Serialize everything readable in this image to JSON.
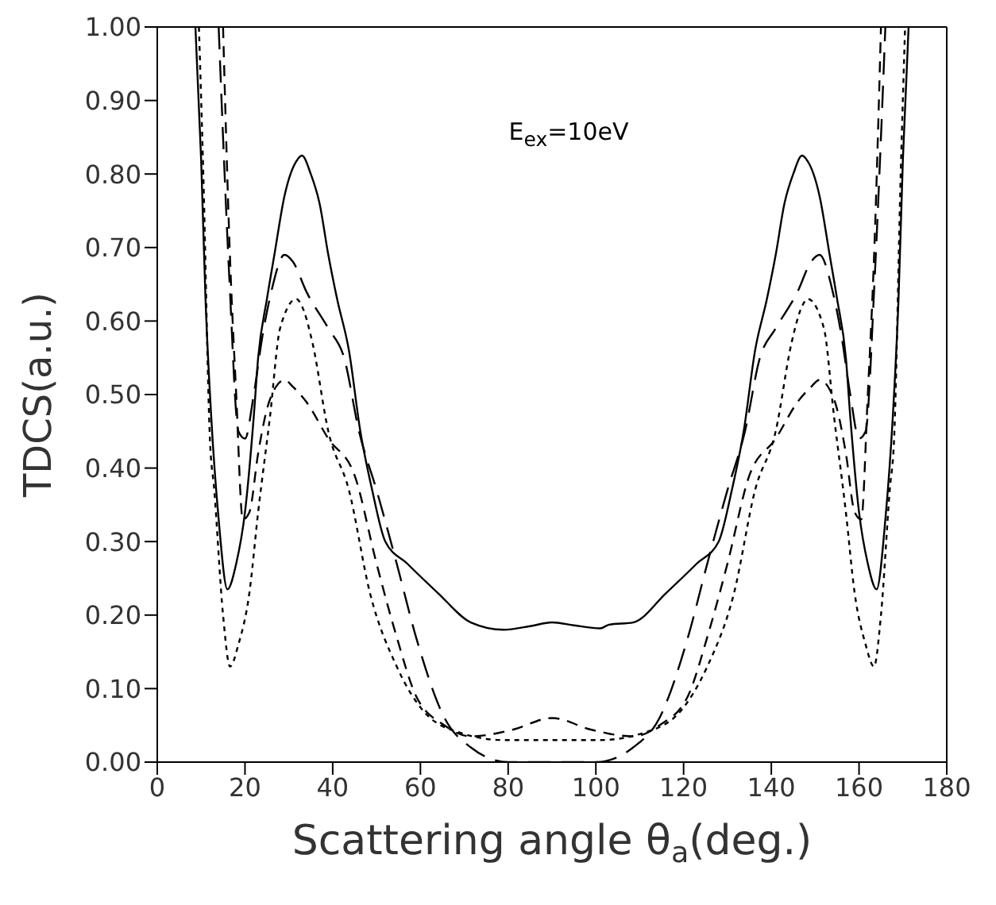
{
  "chart_data": {
    "type": "line",
    "xlabel": "Scattering angle θ$_{a}$(deg.)",
    "ylabel": "TDCS(a.u.)",
    "annotations": [
      "E$_{ex}$=10eV"
    ],
    "xlim": [
      0,
      180
    ],
    "xticks": [
      0,
      20,
      40,
      60,
      80,
      100,
      120,
      140,
      160,
      180
    ],
    "ylim": [
      0,
      1
    ],
    "yticks": [
      {
        "value": 0,
        "label": "0.00"
      },
      {
        "value": 0.1,
        "label": "0.10"
      },
      {
        "value": 0.2,
        "label": "0.20"
      },
      {
        "value": 0.3,
        "label": "0.30"
      },
      {
        "value": 0.4,
        "label": "0.40"
      },
      {
        "value": 0.5,
        "label": "0.50"
      },
      {
        "value": 0.6,
        "label": "0.60"
      },
      {
        "value": 0.7,
        "label": "0.70"
      },
      {
        "value": 0.8,
        "label": "0.80"
      },
      {
        "value": 0.9,
        "label": "0.90"
      },
      {
        "value": 1,
        "label": "1.00"
      }
    ],
    "marker": "none",
    "series": [
      {
        "color": "#000000",
        "line_style": "solid",
        "x": [
          8.7,
          10,
          11,
          12.3,
          14,
          16,
          18,
          20,
          22,
          23,
          25,
          26.7,
          29,
          32,
          33,
          35,
          37,
          39,
          41,
          43.7,
          46.3,
          49,
          52,
          57,
          64,
          71.5,
          79,
          85,
          90,
          95,
          101,
          103,
          108.5,
          116,
          123,
          128,
          131,
          133.7,
          136.3,
          139,
          141,
          143,
          145,
          147,
          148,
          151,
          153.3,
          155,
          157,
          158,
          160,
          162,
          164,
          166,
          167.7,
          169,
          170,
          171.3
        ],
        "values": [
          1.0,
          0.82,
          0.63,
          0.47,
          0.33,
          0.235,
          0.27,
          0.34,
          0.47,
          0.55,
          0.63,
          0.69,
          0.77,
          0.82,
          0.825,
          0.8,
          0.76,
          0.69,
          0.63,
          0.56,
          0.45,
          0.37,
          0.3,
          0.27,
          0.23,
          0.19,
          0.18,
          0.185,
          0.19,
          0.186,
          0.182,
          0.187,
          0.19,
          0.23,
          0.27,
          0.3,
          0.37,
          0.45,
          0.56,
          0.63,
          0.69,
          0.76,
          0.8,
          0.825,
          0.82,
          0.77,
          0.69,
          0.63,
          0.55,
          0.47,
          0.34,
          0.27,
          0.235,
          0.33,
          0.47,
          0.63,
          0.82,
          1.0
        ]
      },
      {
        "color": "#000000",
        "line_style": "dashed",
        "x": [
          14,
          15,
          16.5,
          18.5,
          20,
          22,
          24,
          26,
          29,
          31,
          34,
          39,
          42.6,
          46,
          50,
          54.6,
          59,
          65.5,
          71.5,
          80,
          90,
          100,
          108.5,
          114.5,
          121,
          125.4,
          130,
          134,
          137.4,
          141,
          146,
          149,
          151,
          154,
          156,
          158,
          160,
          161.5,
          163.5,
          165,
          166
        ],
        "values": [
          1.0,
          0.85,
          0.65,
          0.45,
          0.44,
          0.5,
          0.58,
          0.64,
          0.69,
          0.68,
          0.64,
          0.59,
          0.55,
          0.45,
          0.37,
          0.27,
          0.17,
          0.06,
          0.02,
          0,
          0,
          0,
          0.02,
          0.06,
          0.17,
          0.27,
          0.37,
          0.45,
          0.55,
          0.59,
          0.64,
          0.68,
          0.69,
          0.64,
          0.58,
          0.5,
          0.44,
          0.45,
          0.65,
          0.85,
          1.0
        ]
      },
      {
        "color": "#000000",
        "line_style": "dashed",
        "x": [
          15,
          16.5,
          18,
          19.5,
          21,
          23,
          25,
          27,
          29,
          31,
          34,
          39,
          45,
          50,
          54.6,
          59,
          65.5,
          71.5,
          81,
          90,
          99,
          108.5,
          114.5,
          121,
          125.4,
          130,
          135,
          141,
          146,
          149,
          151,
          153,
          155,
          157,
          159,
          160.5,
          162,
          163.5,
          165
        ],
        "values": [
          1.0,
          0.7,
          0.5,
          0.33,
          0.34,
          0.42,
          0.48,
          0.51,
          0.52,
          0.51,
          0.49,
          0.44,
          0.39,
          0.27,
          0.17,
          0.09,
          0.05,
          0.035,
          0.044,
          0.06,
          0.044,
          0.035,
          0.05,
          0.09,
          0.17,
          0.27,
          0.39,
          0.44,
          0.49,
          0.51,
          0.52,
          0.51,
          0.48,
          0.42,
          0.34,
          0.33,
          0.5,
          0.7,
          1.0
        ]
      },
      {
        "color": "#000000",
        "line_style": "dotted",
        "x": [
          9.5,
          10.5,
          12,
          13,
          15,
          16.6,
          18.5,
          21,
          23,
          25.7,
          28,
          31.7,
          33,
          35.4,
          39,
          43.7,
          48.5,
          54.6,
          60.6,
          69,
          79,
          90,
          101,
          111,
          119.4,
          125.4,
          131.5,
          136.3,
          141,
          144.6,
          147,
          148.3,
          152,
          154.3,
          157,
          159,
          161.5,
          163.4,
          165,
          167,
          168,
          169.5,
          170.5
        ],
        "values": [
          1.0,
          0.8,
          0.44,
          0.37,
          0.2,
          0.13,
          0.16,
          0.23,
          0.34,
          0.47,
          0.59,
          0.63,
          0.62,
          0.57,
          0.45,
          0.37,
          0.23,
          0.13,
          0.07,
          0.04,
          0.03,
          0.03,
          0.03,
          0.04,
          0.07,
          0.13,
          0.23,
          0.37,
          0.45,
          0.57,
          0.62,
          0.63,
          0.59,
          0.47,
          0.34,
          0.23,
          0.16,
          0.13,
          0.2,
          0.37,
          0.44,
          0.8,
          1.0
        ]
      }
    ]
  }
}
